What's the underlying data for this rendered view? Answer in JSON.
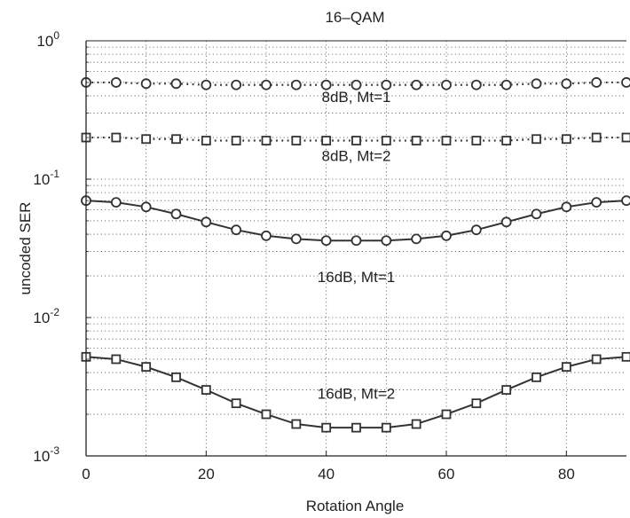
{
  "chart_data": {
    "type": "line",
    "title": "16–QAM",
    "xlabel": "Rotation Angle",
    "ylabel": "uncoded SER",
    "xlim": [
      0,
      90
    ],
    "ylim": [
      0.001,
      1
    ],
    "yscale": "log",
    "grid": true,
    "x_ticks": [
      0,
      20,
      40,
      60,
      80
    ],
    "x_tick_labels": [
      "0",
      "20",
      "40",
      "60",
      "80"
    ],
    "y_ticks": [
      1,
      0.1,
      0.01,
      0.001
    ],
    "y_tick_labels": [
      {
        "base": "10",
        "exp": "0"
      },
      {
        "base": "10",
        "exp": "-1"
      },
      {
        "base": "10",
        "exp": "-2"
      },
      {
        "base": "10",
        "exp": "-3"
      }
    ],
    "x": [
      0,
      5,
      10,
      15,
      20,
      25,
      30,
      35,
      40,
      45,
      50,
      55,
      60,
      65,
      70,
      75,
      80,
      85,
      90
    ],
    "series": [
      {
        "marker": "circle",
        "line": "dotted",
        "values": [
          0.5,
          0.5,
          0.49,
          0.49,
          0.48,
          0.48,
          0.48,
          0.48,
          0.48,
          0.48,
          0.48,
          0.48,
          0.48,
          0.48,
          0.48,
          0.49,
          0.49,
          0.5,
          0.5
        ]
      },
      {
        "marker": "square",
        "line": "dotted",
        "values": [
          0.2,
          0.2,
          0.195,
          0.195,
          0.19,
          0.19,
          0.19,
          0.19,
          0.19,
          0.19,
          0.19,
          0.19,
          0.19,
          0.19,
          0.19,
          0.195,
          0.195,
          0.2,
          0.2
        ]
      },
      {
        "marker": "circle",
        "line": "solid",
        "values": [
          0.07,
          0.068,
          0.063,
          0.056,
          0.049,
          0.043,
          0.039,
          0.037,
          0.036,
          0.036,
          0.036,
          0.037,
          0.039,
          0.043,
          0.049,
          0.056,
          0.063,
          0.068,
          0.07
        ]
      },
      {
        "marker": "square",
        "line": "solid",
        "values": [
          0.0052,
          0.005,
          0.0044,
          0.0037,
          0.003,
          0.0024,
          0.002,
          0.0017,
          0.0016,
          0.0016,
          0.0016,
          0.0017,
          0.002,
          0.0024,
          0.003,
          0.0037,
          0.0044,
          0.005,
          0.0052
        ]
      }
    ],
    "annotations": [
      {
        "text": "8dB, Mt=1",
        "x": 45,
        "y": 0.36
      },
      {
        "text": "8dB, Mt=2",
        "x": 45,
        "y": 0.135
      },
      {
        "text": "16dB, Mt=1",
        "x": 45,
        "y": 0.018
      },
      {
        "text": "16dB, Mt=2",
        "x": 45,
        "y": 0.0026
      }
    ]
  }
}
